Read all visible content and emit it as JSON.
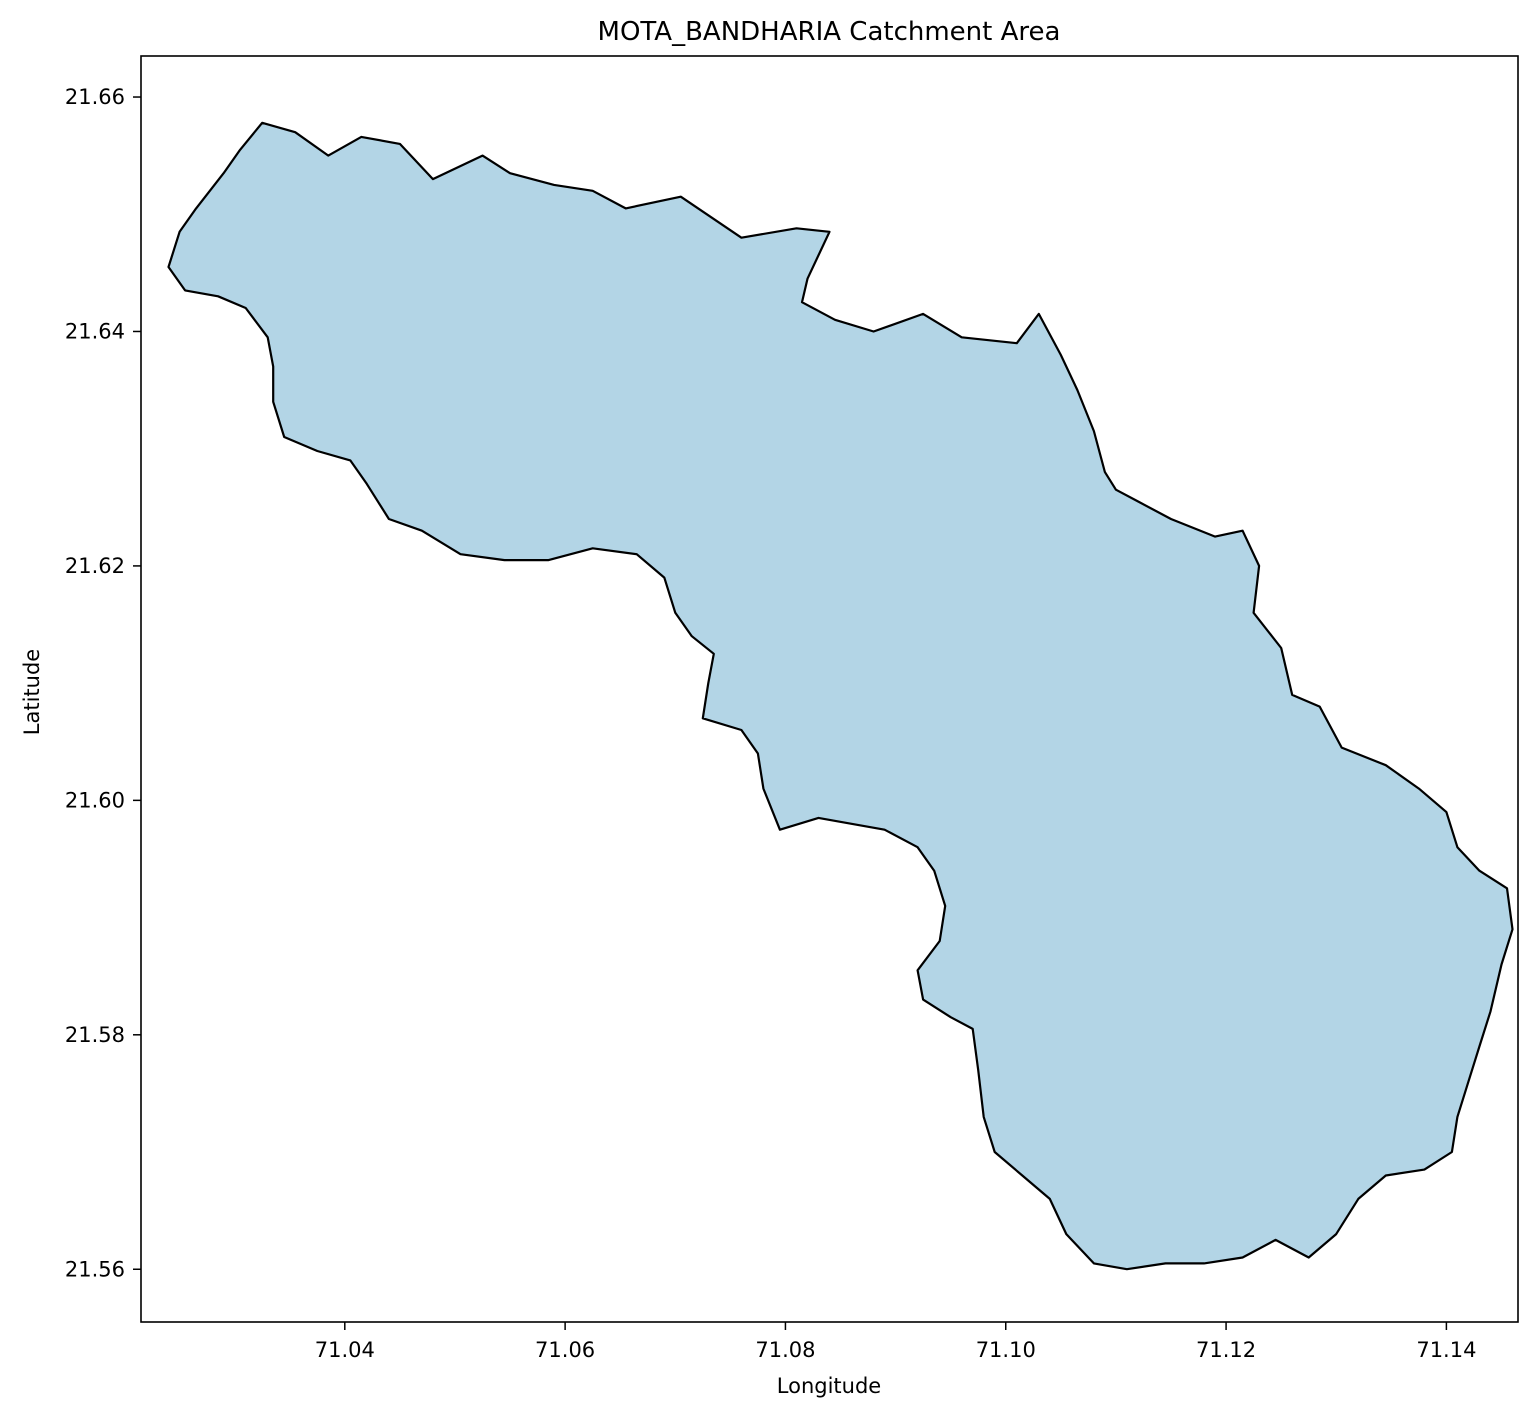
{
  "chart_data": {
    "type": "map",
    "title": "MOTA_BANDHARIA Catchment Area",
    "xlabel": "Longitude",
    "ylabel": "Latitude",
    "xlim": [
      71.0215,
      71.1465
    ],
    "ylim": [
      21.5555,
      21.6635
    ],
    "x_ticks": [
      {
        "value": 71.04,
        "label": "71.04"
      },
      {
        "value": 71.06,
        "label": "71.06"
      },
      {
        "value": 71.08,
        "label": "71.08"
      },
      {
        "value": 71.1,
        "label": "71.10"
      },
      {
        "value": 71.12,
        "label": "71.12"
      },
      {
        "value": 71.14,
        "label": "71.14"
      }
    ],
    "y_ticks": [
      {
        "value": 21.56,
        "label": "21.56"
      },
      {
        "value": 21.58,
        "label": "21.58"
      },
      {
        "value": 21.6,
        "label": "21.60"
      },
      {
        "value": 21.62,
        "label": "21.62"
      },
      {
        "value": 21.64,
        "label": "21.64"
      },
      {
        "value": 21.66,
        "label": "21.66"
      }
    ],
    "grid": false,
    "fill_color": "#b3d5e6",
    "edge_color": "#000000",
    "boundary": [
      [
        71.0325,
        21.6578
      ],
      [
        71.0355,
        21.657
      ],
      [
        71.0385,
        21.655
      ],
      [
        71.0415,
        21.6566
      ],
      [
        71.045,
        21.656
      ],
      [
        71.048,
        21.653
      ],
      [
        71.0525,
        21.655
      ],
      [
        71.055,
        21.6535
      ],
      [
        71.059,
        21.6525
      ],
      [
        71.0625,
        21.652
      ],
      [
        71.0655,
        21.6505
      ],
      [
        71.0705,
        21.6515
      ],
      [
        71.076,
        21.648
      ],
      [
        71.081,
        21.6488
      ],
      [
        71.084,
        21.6485
      ],
      [
        71.082,
        21.6445
      ],
      [
        71.0815,
        21.6425
      ],
      [
        71.0845,
        21.641
      ],
      [
        71.088,
        21.64
      ],
      [
        71.0925,
        21.6415
      ],
      [
        71.096,
        21.6395
      ],
      [
        71.101,
        21.639
      ],
      [
        71.103,
        21.6415
      ],
      [
        71.105,
        21.638
      ],
      [
        71.1065,
        21.635
      ],
      [
        71.108,
        21.6315
      ],
      [
        71.109,
        21.628
      ],
      [
        71.11,
        21.6265
      ],
      [
        71.112,
        21.6255
      ],
      [
        71.115,
        21.624
      ],
      [
        71.119,
        21.6225
      ],
      [
        71.1215,
        21.623
      ],
      [
        71.123,
        21.62
      ],
      [
        71.1225,
        21.616
      ],
      [
        71.125,
        21.613
      ],
      [
        71.126,
        21.609
      ],
      [
        71.1285,
        21.608
      ],
      [
        71.1305,
        21.6045
      ],
      [
        71.1345,
        21.603
      ],
      [
        71.1375,
        21.601
      ],
      [
        71.14,
        21.599
      ],
      [
        71.141,
        21.596
      ],
      [
        71.143,
        21.594
      ],
      [
        71.1455,
        21.5925
      ],
      [
        71.146,
        21.589
      ],
      [
        71.145,
        21.586
      ],
      [
        71.144,
        21.582
      ],
      [
        71.143,
        21.579
      ],
      [
        71.142,
        21.576
      ],
      [
        71.141,
        21.573
      ],
      [
        71.1405,
        21.57
      ],
      [
        71.138,
        21.5685
      ],
      [
        71.1345,
        21.568
      ],
      [
        71.132,
        21.566
      ],
      [
        71.13,
        21.563
      ],
      [
        71.1275,
        21.561
      ],
      [
        71.1245,
        21.5625
      ],
      [
        71.1215,
        21.561
      ],
      [
        71.118,
        21.5605
      ],
      [
        71.1145,
        21.5605
      ],
      [
        71.111,
        21.56
      ],
      [
        71.108,
        21.5605
      ],
      [
        71.1055,
        21.563
      ],
      [
        71.104,
        21.566
      ],
      [
        71.1015,
        21.568
      ],
      [
        71.099,
        21.57
      ],
      [
        71.098,
        21.573
      ],
      [
        71.0975,
        21.577
      ],
      [
        71.097,
        21.5805
      ],
      [
        71.095,
        21.5815
      ],
      [
        71.0925,
        21.583
      ],
      [
        71.092,
        21.5855
      ],
      [
        71.094,
        21.588
      ],
      [
        71.0945,
        21.591
      ],
      [
        71.0935,
        21.594
      ],
      [
        71.092,
        21.596
      ],
      [
        71.089,
        21.5975
      ],
      [
        71.086,
        21.598
      ],
      [
        71.083,
        21.5985
      ],
      [
        71.0795,
        21.5975
      ],
      [
        71.078,
        21.601
      ],
      [
        71.0775,
        21.604
      ],
      [
        71.076,
        21.606
      ],
      [
        71.0725,
        21.607
      ],
      [
        71.073,
        21.61
      ],
      [
        71.0735,
        21.6125
      ],
      [
        71.0715,
        21.614
      ],
      [
        71.07,
        21.616
      ],
      [
        71.069,
        21.619
      ],
      [
        71.0665,
        21.621
      ],
      [
        71.0625,
        21.6215
      ],
      [
        71.0585,
        21.6205
      ],
      [
        71.0545,
        21.6205
      ],
      [
        71.0505,
        21.621
      ],
      [
        71.047,
        21.623
      ],
      [
        71.044,
        21.624
      ],
      [
        71.042,
        21.627
      ],
      [
        71.0405,
        21.629
      ],
      [
        71.0375,
        21.6298
      ],
      [
        71.0345,
        21.631
      ],
      [
        71.0335,
        21.634
      ],
      [
        71.0335,
        21.637
      ],
      [
        71.033,
        21.6395
      ],
      [
        71.031,
        21.642
      ],
      [
        71.0285,
        21.643
      ],
      [
        71.0255,
        21.6435
      ],
      [
        71.024,
        21.6455
      ],
      [
        71.025,
        21.6485
      ],
      [
        71.0265,
        21.6505
      ],
      [
        71.029,
        21.6535
      ],
      [
        71.0305,
        21.6555
      ]
    ]
  }
}
